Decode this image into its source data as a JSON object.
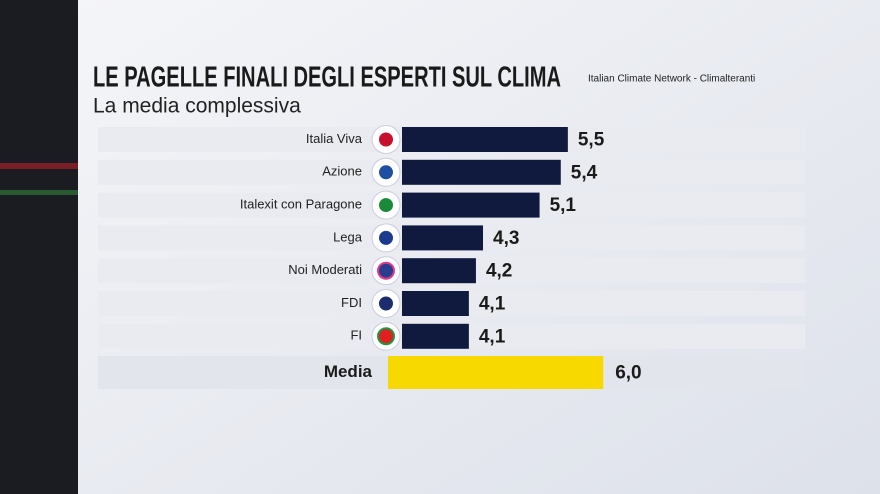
{
  "chart_data": {
    "type": "bar",
    "orientation": "horizontal",
    "title": "LE PAGELLE FINALI DEGLI ESPERTI SUL CLIMA",
    "subtitle": "La media complessiva",
    "source": "Italian Climate Network - Climalteranti",
    "categories": [
      "Italia Viva",
      "Azione",
      "Italexit con Paragone",
      "Lega",
      "Noi Moderati",
      "FDI",
      "FI"
    ],
    "values": [
      5.5,
      5.4,
      5.1,
      4.3,
      4.2,
      4.1,
      4.1
    ],
    "value_labels": [
      "5,5",
      "5,4",
      "5,1",
      "4,3",
      "4,2",
      "4,1",
      "4,1"
    ],
    "color": "#0f1a3e",
    "average": {
      "label": "Media",
      "value": 6.0,
      "value_label": "6,0",
      "color": "#f7d900"
    }
  }
}
